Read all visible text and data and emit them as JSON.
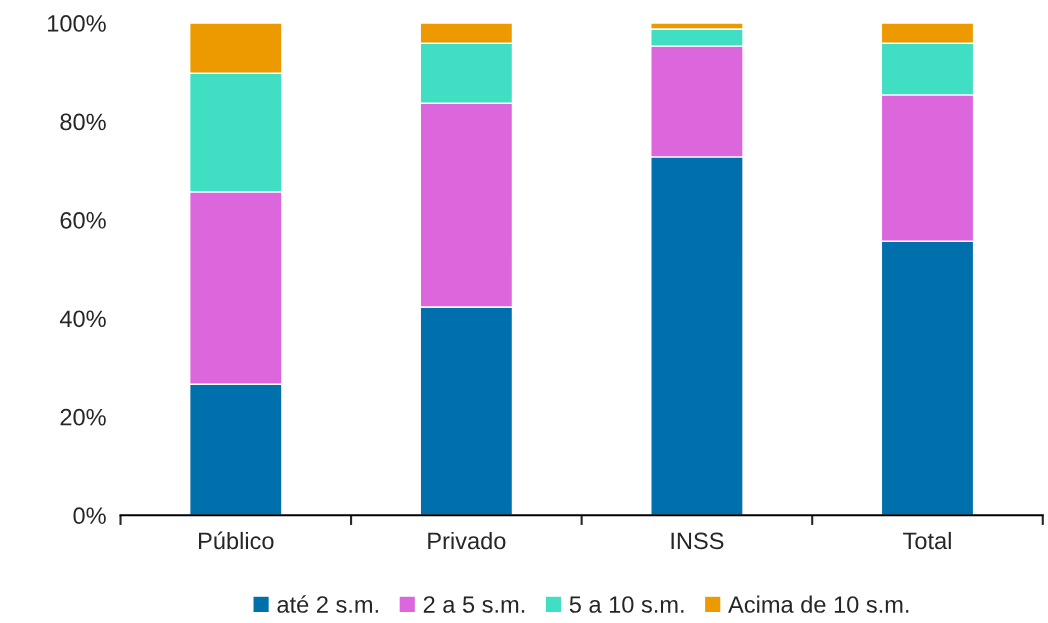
{
  "chart_data": {
    "type": "bar",
    "stacked": true,
    "categories": [
      "Público",
      "Privado",
      "INSS",
      "Total"
    ],
    "series": [
      {
        "name": "até 2 s.m.",
        "color": "#0070ad",
        "values": [
          26.6,
          42.3,
          72.8,
          55.7
        ]
      },
      {
        "name": "2 a 5 s.m.",
        "color": "#dc67dc",
        "values": [
          39.1,
          41.4,
          22.5,
          29.7
        ]
      },
      {
        "name": "5 a 10 s.m.",
        "color": "#40dfc4",
        "values": [
          24.1,
          12.2,
          3.5,
          10.5
        ]
      },
      {
        "name": "Acima de 10 s.m.",
        "color": "#ec9a00",
        "values": [
          10.2,
          4.1,
          1.2,
          4.1
        ]
      }
    ],
    "ylim": [
      0,
      100
    ],
    "yticks": [
      {
        "value": 0,
        "label": "0%"
      },
      {
        "value": 20,
        "label": "20%"
      },
      {
        "value": 40,
        "label": "40%"
      },
      {
        "value": 60,
        "label": "60%"
      },
      {
        "value": 80,
        "label": "80%"
      },
      {
        "value": 100,
        "label": "100%"
      }
    ],
    "grid": false,
    "legend": "bottom"
  }
}
